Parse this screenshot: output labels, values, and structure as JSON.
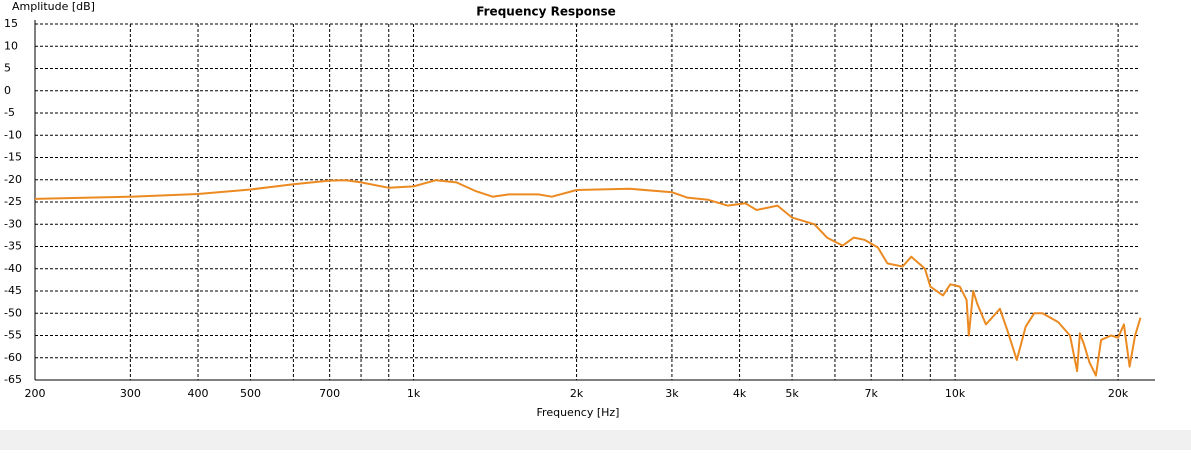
{
  "chart_data": {
    "type": "line",
    "title": "Frequency Response",
    "x_label": "Frequency [Hz]",
    "y_label": "Amplitude [dB]",
    "x_scale": "log",
    "grid": true,
    "xlim": [
      200,
      24000
    ],
    "ylim": [
      -65,
      15
    ],
    "xticks": [
      200,
      300,
      400,
      500,
      700,
      {
        "value": 1000,
        "label": "1k"
      },
      {
        "value": 2000,
        "label": "2k"
      },
      {
        "value": 3000,
        "label": "3k"
      },
      {
        "value": 4000,
        "label": "4k"
      },
      {
        "value": 5000,
        "label": "5k"
      },
      {
        "value": 7000,
        "label": "7k"
      },
      {
        "value": 10000,
        "label": "10k"
      },
      {
        "value": 20000,
        "label": "20k"
      }
    ],
    "xminor": [
      600,
      800,
      900,
      6000,
      8000,
      9000
    ],
    "yticks": [
      15,
      10,
      5,
      0,
      -5,
      -10,
      -15,
      -20,
      -25,
      -30,
      -35,
      -40,
      -45,
      -50,
      -55,
      -60,
      -65
    ],
    "series": [
      {
        "color": "#ec8a22",
        "x": [
          200,
          300,
          400,
          500,
          600,
          700,
          750,
          800,
          900,
          1000,
          1100,
          1200,
          1300,
          1400,
          1500,
          1700,
          1800,
          2000,
          2500,
          3000,
          3200,
          3500,
          3800,
          4100,
          4300,
          4700,
          5000,
          5500,
          5800,
          6200,
          6500,
          6800,
          7200,
          7500,
          8000,
          8300,
          8800,
          9000,
          9500,
          9800,
          10200,
          10500,
          10600,
          10800,
          11000,
          11400,
          11800,
          12100,
          12500,
          13000,
          13500,
          14000,
          14500,
          15500,
          16300,
          16800,
          17000,
          17300,
          17700,
          18200,
          18600,
          19400,
          20000,
          20500,
          21000,
          21500,
          22000
        ],
        "values": [
          -24.3,
          -23.8,
          -23.2,
          -22.2,
          -21,
          -20.2,
          -20.1,
          -20.6,
          -21.8,
          -21.5,
          -20.1,
          -20.6,
          -22.5,
          -23.8,
          -23.3,
          -23.3,
          -23.8,
          -22.3,
          -22,
          -22.8,
          -24,
          -24.5,
          -25.8,
          -25.3,
          -26.8,
          -25.8,
          -28.5,
          -30,
          -33,
          -34.8,
          -33,
          -33.5,
          -35.2,
          -38.8,
          -39.5,
          -37.3,
          -40,
          -44,
          -46,
          -43.5,
          -44,
          -47,
          -55,
          -45,
          -48,
          -52.5,
          -50.5,
          -49,
          -54,
          -60.5,
          -53,
          -50,
          -50,
          -52,
          -55,
          -63,
          -54.5,
          -57,
          -61,
          -64,
          -56,
          -55,
          -55.5,
          -52.5,
          -62,
          -55,
          -51
        ]
      }
    ]
  }
}
